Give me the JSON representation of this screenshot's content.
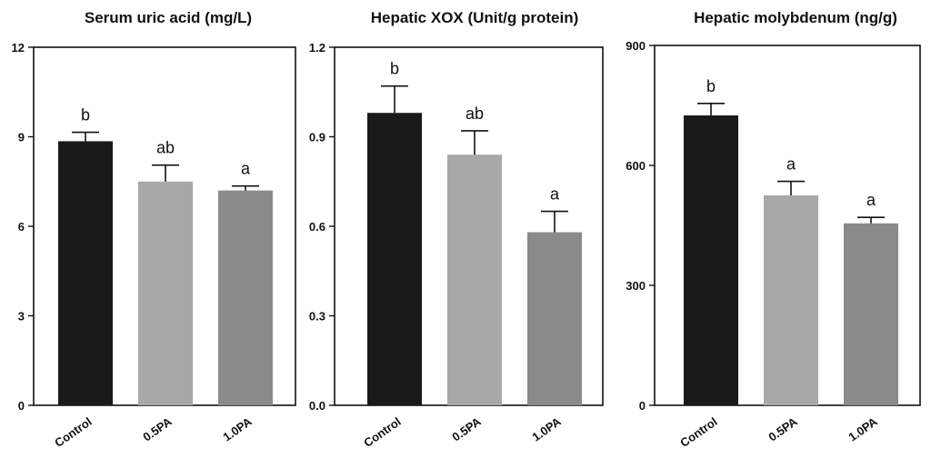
{
  "colors": {
    "control": "#1a1a1a",
    "pa05": "#a8a8a8",
    "pa10": "#8a8a8a",
    "axis": "#111111"
  },
  "chart_data": [
    {
      "type": "bar",
      "title": "Serum uric acid (mg/L)",
      "categories": [
        "Control",
        "0.5PA",
        "1.0PA"
      ],
      "values": [
        8.85,
        7.5,
        7.2
      ],
      "errors": [
        0.3,
        0.55,
        0.15
      ],
      "letters": [
        "b",
        "ab",
        "a"
      ],
      "ylim": [
        0,
        12
      ],
      "yticks": [
        "0",
        "3",
        "6",
        "9",
        "12"
      ],
      "ytick_values": [
        0,
        3,
        6,
        9,
        12
      ],
      "xlabel": "",
      "ylabel": ""
    },
    {
      "type": "bar",
      "title": "Hepatic XOX  (Unit/g protein)",
      "categories": [
        "Control",
        "0.5PA",
        "1.0PA"
      ],
      "values": [
        0.98,
        0.84,
        0.58
      ],
      "errors": [
        0.09,
        0.08,
        0.07
      ],
      "letters": [
        "b",
        "ab",
        "a"
      ],
      "ylim": [
        0,
        1.2
      ],
      "yticks": [
        "0.0",
        "0.3",
        "0.6",
        "0.9",
        "1.2"
      ],
      "ytick_values": [
        0,
        0.3,
        0.6,
        0.9,
        1.2
      ],
      "xlabel": "",
      "ylabel": ""
    },
    {
      "type": "bar",
      "title": "Hepatic molybdenum (ng/g)",
      "categories": [
        "Control",
        "0.5PA",
        "1.0PA"
      ],
      "values": [
        725,
        525,
        455
      ],
      "errors": [
        30,
        35,
        15
      ],
      "letters": [
        "b",
        "a",
        "a"
      ],
      "ylim": [
        0,
        900
      ],
      "yticks": [
        "0",
        "300",
        "600",
        "900"
      ],
      "ytick_values": [
        0,
        300,
        600,
        900
      ],
      "xlabel": "",
      "ylabel": ""
    }
  ]
}
